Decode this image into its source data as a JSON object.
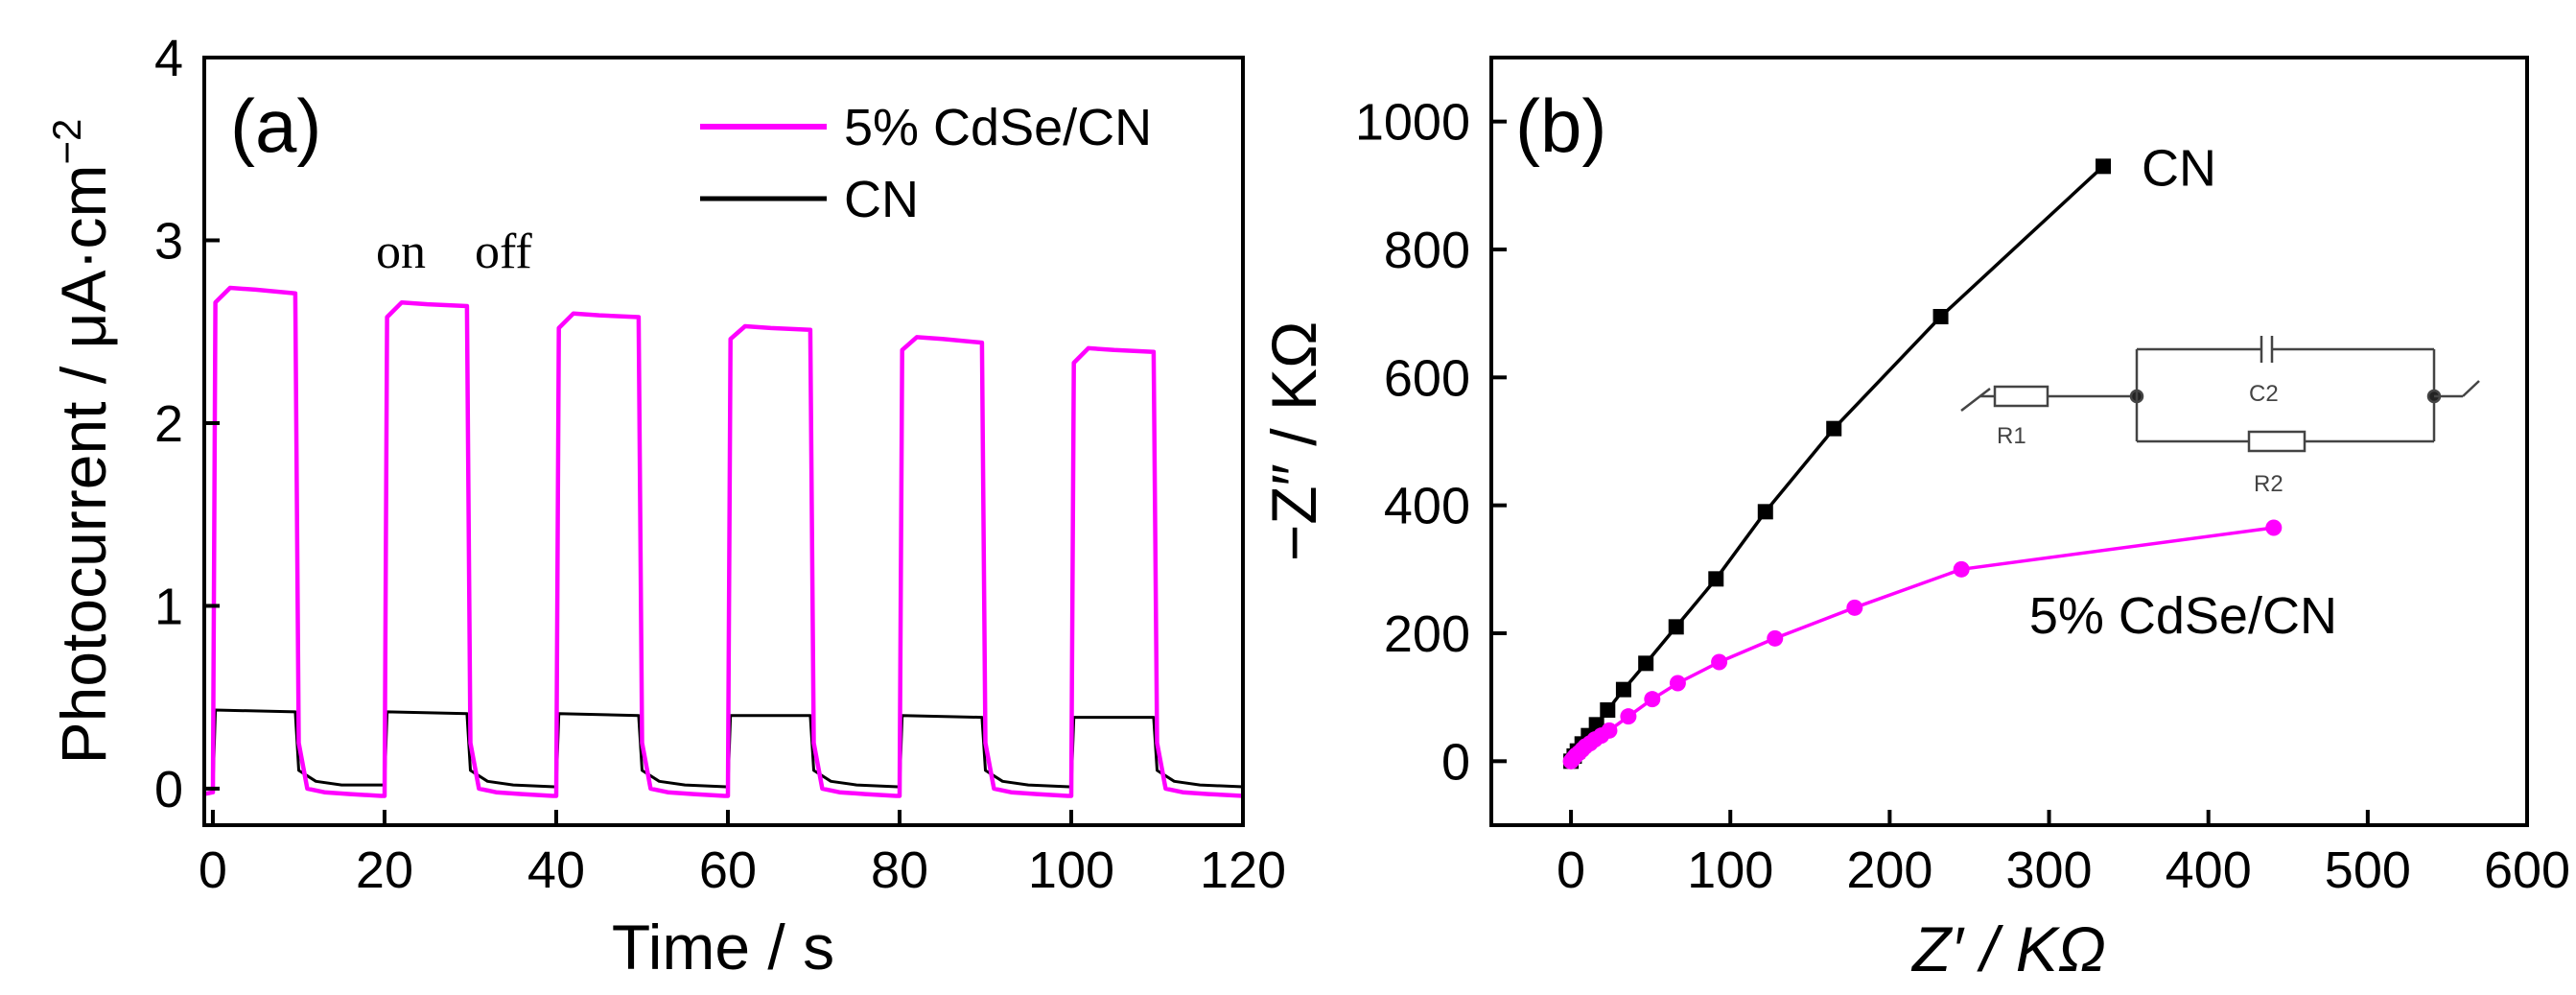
{
  "colors": {
    "cn": "#000000",
    "cdse": "#ff00ff",
    "axis": "#000000"
  },
  "chart_data": [
    {
      "type": "line",
      "panel": "(a)",
      "xlabel": "Time / s",
      "ylabel": "Photocurrent / μA·cm⁻²",
      "ylabel_main": "Photocurrent / μA·cm",
      "ylabel_sup": "−2",
      "xlim": [
        -1,
        120
      ],
      "ylim": [
        -0.2,
        4
      ],
      "xticks": [
        0,
        20,
        40,
        60,
        80,
        100,
        120
      ],
      "yticks": [
        0,
        1,
        2,
        3,
        4
      ],
      "annotations": [
        {
          "text": "on",
          "x": 19,
          "y": 2.85
        },
        {
          "text": "off",
          "x": 30.5,
          "y": 2.85
        }
      ],
      "legend": {
        "position": "top-right",
        "entries": [
          "5% CdSe/CN",
          "CN"
        ]
      },
      "series": [
        {
          "name": "5% CdSe/CN",
          "x": [
            -1,
            0,
            0.3,
            2,
            5,
            9.6,
            10,
            11,
            13,
            16,
            19.6,
            20,
            20.3,
            22,
            25,
            29.6,
            30,
            31,
            33,
            36,
            39.6,
            40,
            40.3,
            42,
            45,
            49.6,
            50,
            51,
            53,
            56,
            59.6,
            60,
            60.3,
            62,
            65,
            69.6,
            70,
            71,
            73,
            76,
            79.6,
            80,
            80.3,
            82,
            85,
            89.6,
            90,
            91,
            93,
            96,
            99.6,
            100,
            100.3,
            102,
            105,
            109.6,
            110,
            111,
            113,
            116,
            120
          ],
          "y": [
            -0.03,
            -0.02,
            2.66,
            2.74,
            2.73,
            2.71,
            0.25,
            0.0,
            -0.02,
            -0.03,
            -0.04,
            -0.04,
            2.58,
            2.66,
            2.65,
            2.64,
            0.25,
            0.0,
            -0.02,
            -0.03,
            -0.04,
            -0.04,
            2.52,
            2.6,
            2.59,
            2.58,
            0.25,
            0.0,
            -0.02,
            -0.03,
            -0.04,
            -0.04,
            2.46,
            2.53,
            2.52,
            2.51,
            0.25,
            0.0,
            -0.02,
            -0.03,
            -0.04,
            -0.04,
            2.4,
            2.47,
            2.46,
            2.44,
            0.25,
            0.0,
            -0.02,
            -0.03,
            -0.04,
            -0.04,
            2.33,
            2.41,
            2.4,
            2.39,
            0.25,
            0.0,
            -0.02,
            -0.03,
            -0.04
          ]
        },
        {
          "name": "CN",
          "x": [
            -1,
            0,
            0.3,
            9.6,
            10,
            12,
            15,
            19.8,
            20,
            20.3,
            29.6,
            30,
            32,
            35,
            39.8,
            40,
            40.3,
            49.6,
            50,
            52,
            55,
            59.8,
            60,
            60.3,
            69.6,
            70,
            72,
            75,
            79.8,
            80,
            80.3,
            89.6,
            90,
            92,
            95,
            99.8,
            100,
            100.3,
            109.6,
            110,
            112,
            115,
            120
          ],
          "y": [
            0.0,
            0.0,
            0.43,
            0.42,
            0.1,
            0.04,
            0.02,
            0.02,
            0.02,
            0.42,
            0.41,
            0.1,
            0.04,
            0.02,
            0.01,
            0.01,
            0.41,
            0.4,
            0.1,
            0.04,
            0.02,
            0.01,
            0.01,
            0.4,
            0.4,
            0.1,
            0.04,
            0.02,
            0.01,
            0.01,
            0.4,
            0.39,
            0.1,
            0.04,
            0.02,
            0.01,
            0.01,
            0.39,
            0.39,
            0.1,
            0.04,
            0.02,
            0.01
          ]
        }
      ]
    },
    {
      "type": "scatter",
      "panel": "(b)",
      "xlabel": "Z′ / KΩ",
      "ylabel": "−Z″ / KΩ",
      "xlim": [
        -50,
        600
      ],
      "ylim": [
        -100,
        1100
      ],
      "xticks": [
        0,
        100,
        200,
        300,
        400,
        500,
        600
      ],
      "yticks": [
        0,
        200,
        400,
        600,
        800,
        1000
      ],
      "inset": {
        "type": "equivalent-circuit",
        "labels": [
          "R1",
          "C2",
          "R2"
        ]
      },
      "series": [
        {
          "name": "CN",
          "marker": "square",
          "label_text": "CN",
          "x": [
            0,
            2,
            4,
            7,
            11,
            16,
            23,
            33,
            47,
            66,
            91,
            122,
            165,
            232,
            334
          ],
          "y": [
            0,
            8,
            16,
            27,
            40,
            57,
            80,
            112,
            153,
            210,
            285,
            390,
            520,
            695,
            930
          ]
        },
        {
          "name": "5% CdSe/CN",
          "marker": "circle",
          "label_text": "5% CdSe/CN",
          "x": [
            0,
            1,
            2,
            3,
            5,
            7,
            9,
            12,
            15,
            19,
            24,
            36,
            51,
            67,
            93,
            128,
            178,
            245,
            441
          ],
          "y": [
            0,
            3,
            6,
            9,
            13,
            18,
            23,
            28,
            34,
            40,
            48,
            70,
            97,
            122,
            155,
            192,
            240,
            300,
            365
          ]
        }
      ]
    }
  ]
}
